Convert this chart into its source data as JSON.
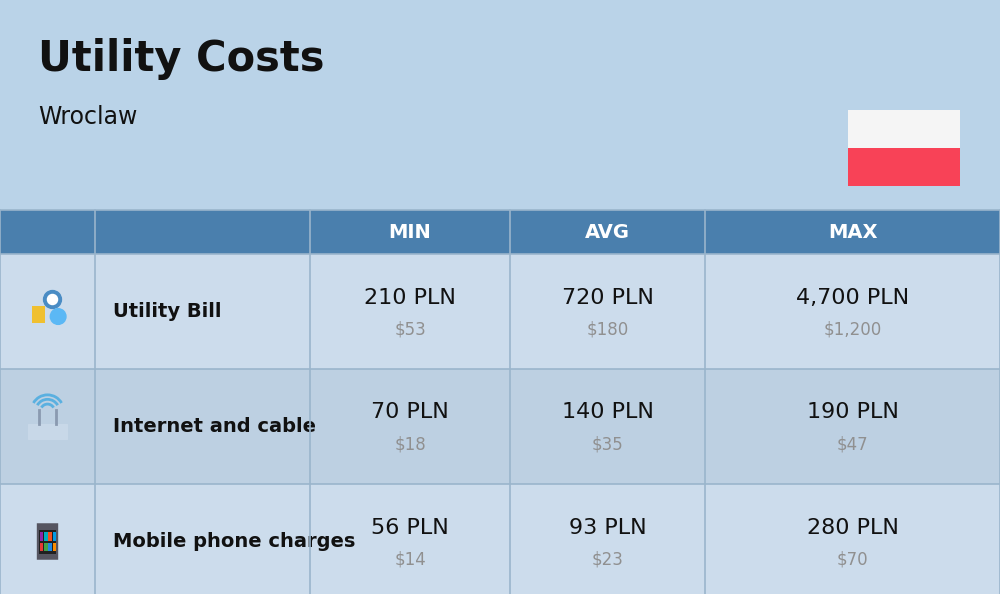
{
  "title": "Utility Costs",
  "subtitle": "Wroclaw",
  "background_color": "#bad3e8",
  "header_bg_color": "#4a7fad",
  "header_text_color": "#ffffff",
  "row_bg_colors": [
    "#ccdcec",
    "#bdd0e2"
  ],
  "header_labels": [
    "MIN",
    "AVG",
    "MAX"
  ],
  "rows": [
    {
      "label": "Utility Bill",
      "min_pln": "210 PLN",
      "min_usd": "$53",
      "avg_pln": "720 PLN",
      "avg_usd": "$180",
      "max_pln": "4,700 PLN",
      "max_usd": "$1,200"
    },
    {
      "label": "Internet and cable",
      "min_pln": "70 PLN",
      "min_usd": "$18",
      "avg_pln": "140 PLN",
      "avg_usd": "$35",
      "max_pln": "190 PLN",
      "max_usd": "$47"
    },
    {
      "label": "Mobile phone charges",
      "min_pln": "56 PLN",
      "min_usd": "$14",
      "avg_pln": "93 PLN",
      "avg_usd": "$23",
      "max_pln": "280 PLN",
      "max_usd": "$70"
    }
  ],
  "pln_fontsize": 16,
  "usd_fontsize": 12,
  "label_fontsize": 14,
  "header_fontsize": 14,
  "title_fontsize": 30,
  "subtitle_fontsize": 17,
  "usd_color": "#909090",
  "text_color": "#111111",
  "flag_white": "#f5f5f5",
  "flag_red": "#f84257",
  "line_color": "#9ab5cc"
}
